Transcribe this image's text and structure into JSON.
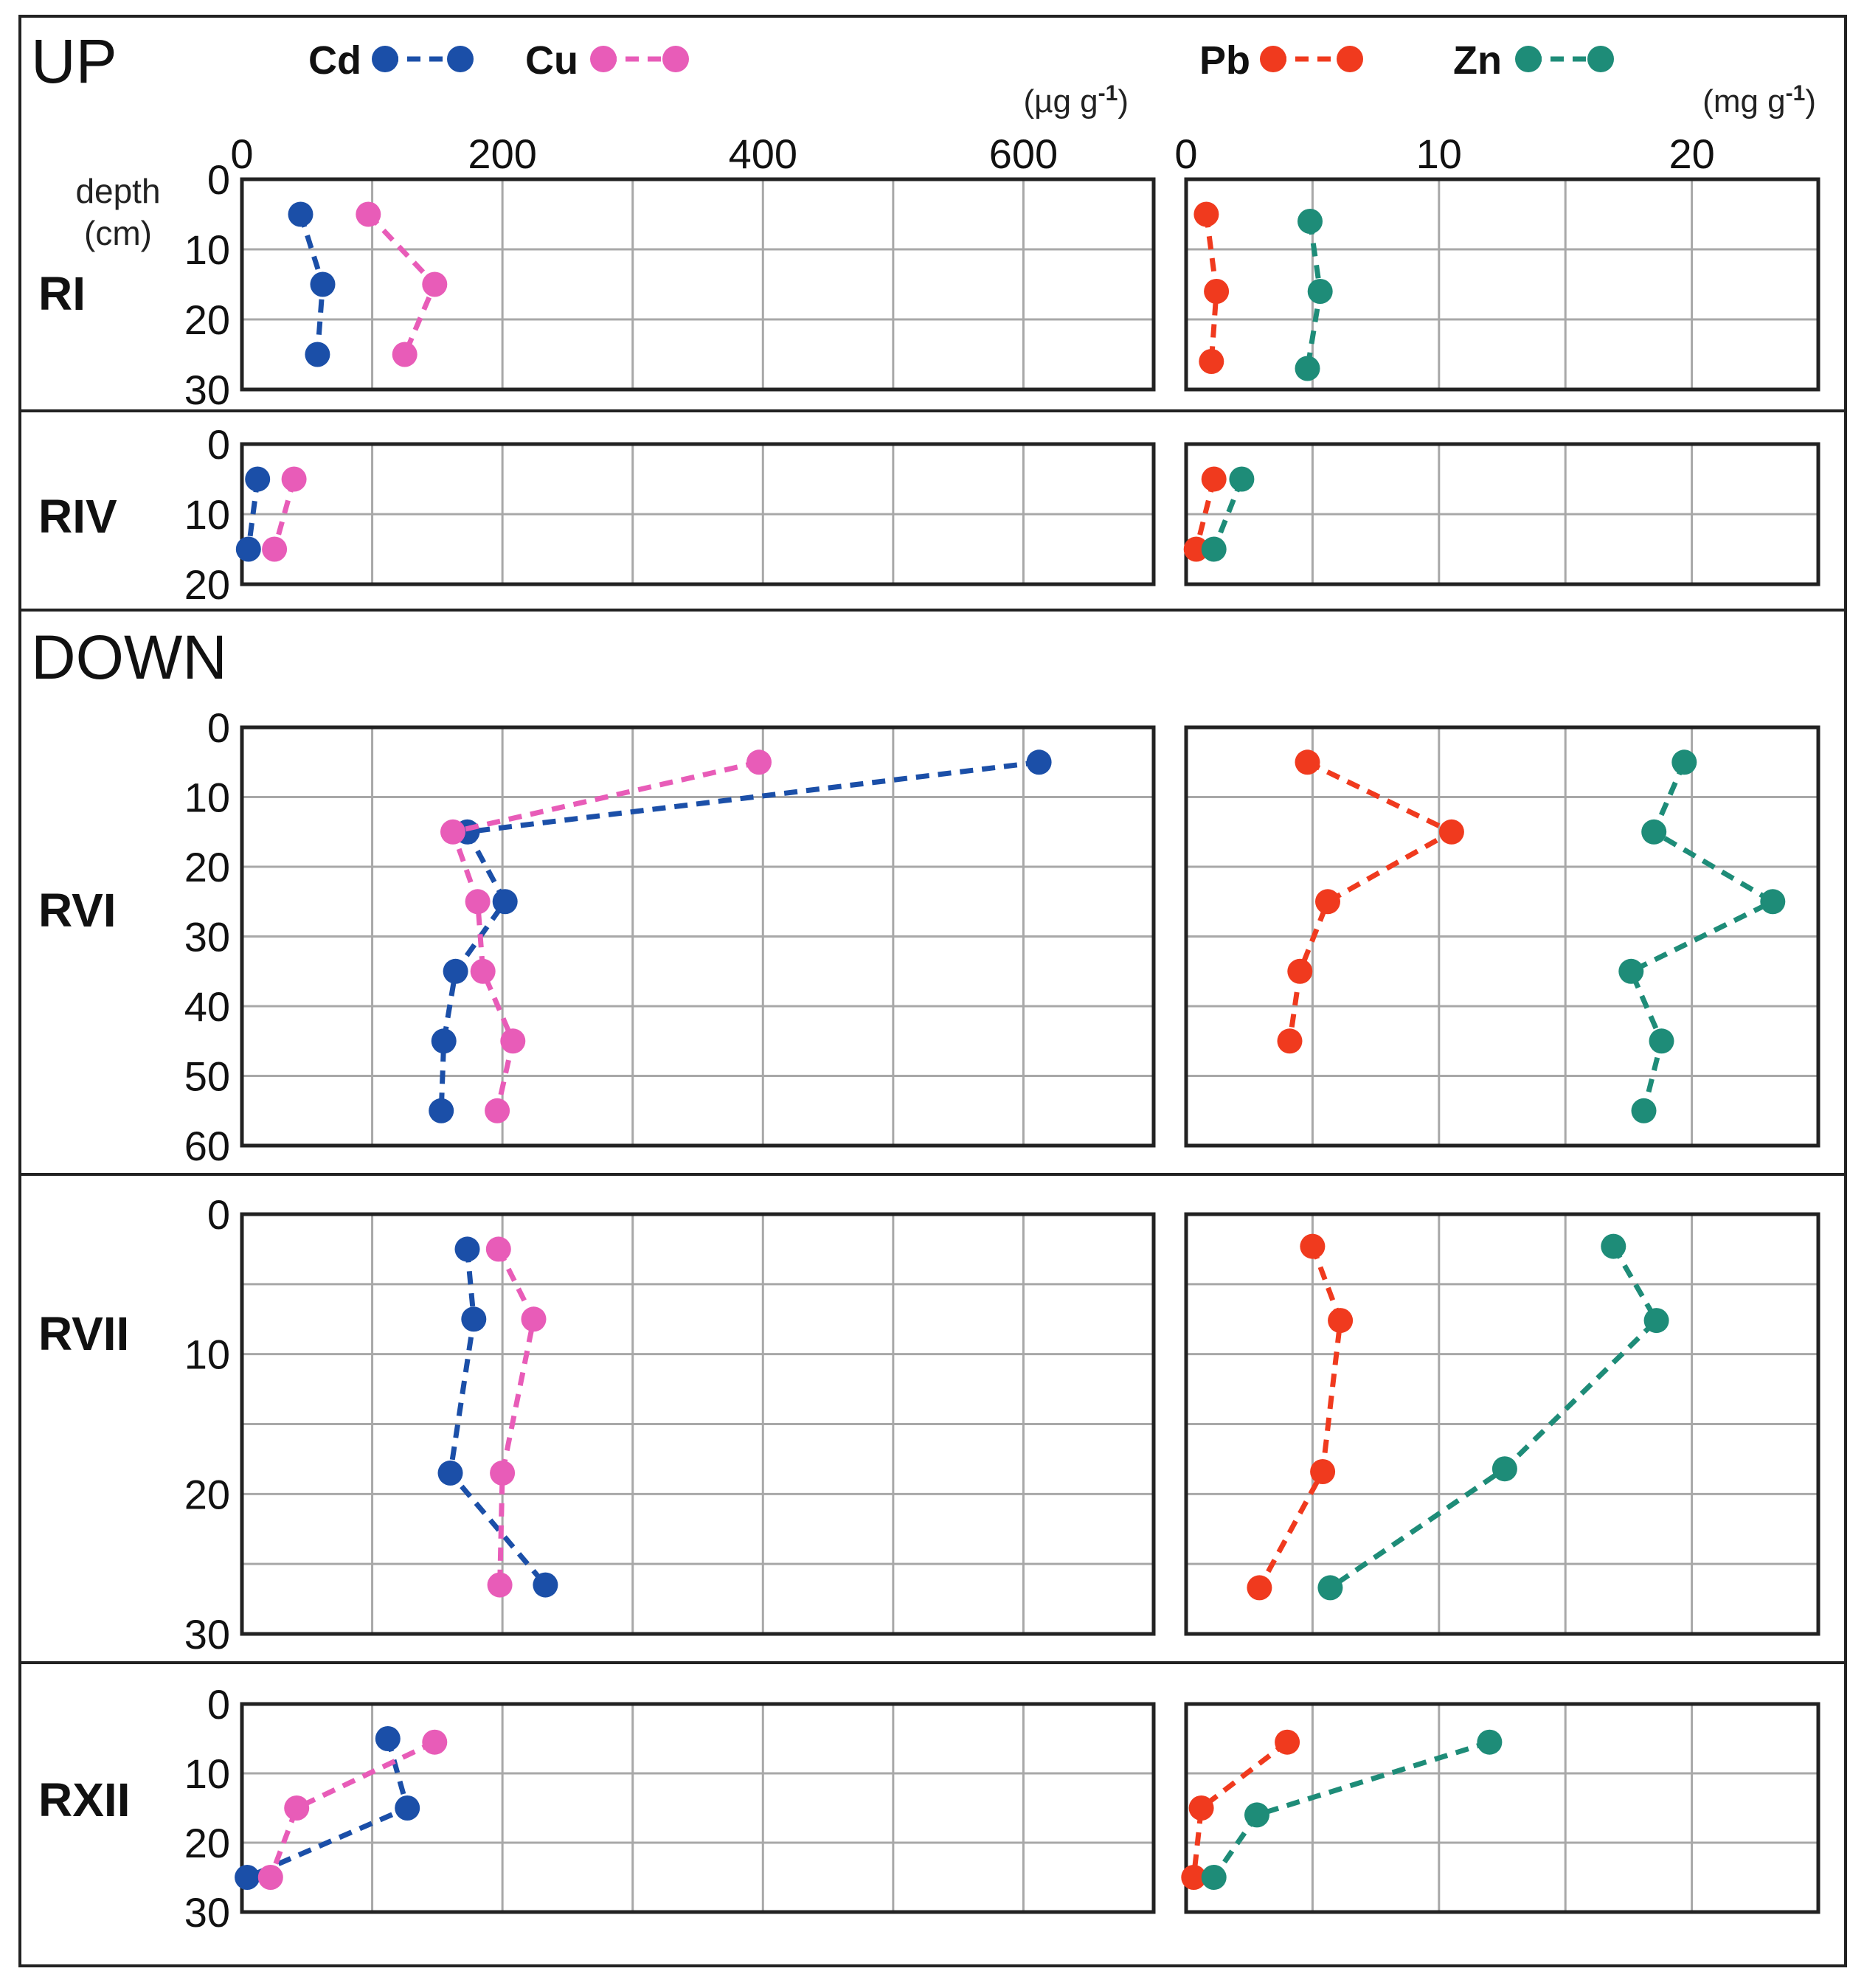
{
  "chart_data": {
    "type": "line",
    "orientation": "depth profile (depth on inverted y-axis, concentration on x-axis)",
    "legend": [
      {
        "name": "Cd",
        "color": "#1b4fa8",
        "axis": "left"
      },
      {
        "name": "Cu",
        "color": "#e85cb8",
        "axis": "left"
      },
      {
        "name": "Pb",
        "color": "#f03a1e",
        "axis": "right"
      },
      {
        "name": "Zn",
        "color": "#1e8c78",
        "axis": "right"
      }
    ],
    "axes": {
      "left": {
        "unit_label": "(µg g",
        "unit_sup": "-1",
        "unit_close": ")",
        "range": [
          0,
          700
        ],
        "grid_step": 100,
        "tick_values": [
          0,
          200,
          400,
          600
        ],
        "ticks": [
          "0",
          "200",
          "400",
          "600"
        ]
      },
      "right": {
        "unit_label": "(mg g",
        "unit_sup": "-1",
        "unit_close": ")",
        "range": [
          0,
          25
        ],
        "grid_step": 5,
        "tick_values": [
          0,
          10,
          20
        ],
        "ticks": [
          "0",
          "10",
          "20"
        ]
      }
    },
    "depth_label": [
      "depth",
      "(cm)"
    ],
    "groups": [
      {
        "label": "UP",
        "sites": [
          "RI",
          "RIV"
        ]
      },
      {
        "label": "DOWN",
        "sites": [
          "RVI",
          "RVII",
          "RXII"
        ]
      }
    ],
    "panels": [
      {
        "site": "RI",
        "depth_max": 30,
        "depth_grid": 10,
        "depth_ticks": [
          0,
          10,
          20,
          30
        ],
        "depth_tick_labels": [
          "0",
          "10",
          "20",
          "30"
        ],
        "series": [
          {
            "name": "Cd",
            "depth": [
              5,
              15,
              25
            ],
            "values": [
              45,
              62,
              58
            ]
          },
          {
            "name": "Cu",
            "depth": [
              5,
              15,
              25
            ],
            "values": [
              97,
              148,
              125
            ]
          },
          {
            "name": "Pb",
            "depth": [
              5,
              16,
              26
            ],
            "values": [
              0.8,
              1.2,
              1.0
            ]
          },
          {
            "name": "Zn",
            "depth": [
              6,
              16,
              27
            ],
            "values": [
              4.9,
              5.3,
              4.8
            ]
          }
        ]
      },
      {
        "site": "RIV",
        "depth_max": 20,
        "depth_grid": 10,
        "depth_ticks": [
          0,
          10,
          20
        ],
        "depth_tick_labels": [
          "0",
          "10",
          "20"
        ],
        "series": [
          {
            "name": "Cd",
            "depth": [
              5,
              15
            ],
            "values": [
              12,
              5
            ]
          },
          {
            "name": "Cu",
            "depth": [
              5,
              15
            ],
            "values": [
              40,
              25
            ]
          },
          {
            "name": "Pb",
            "depth": [
              5,
              15
            ],
            "values": [
              1.1,
              0.4
            ]
          },
          {
            "name": "Zn",
            "depth": [
              5,
              15
            ],
            "values": [
              2.2,
              1.1
            ]
          }
        ]
      },
      {
        "site": "RVI",
        "depth_max": 60,
        "depth_grid": 10,
        "depth_ticks": [
          0,
          10,
          20,
          30,
          40,
          50,
          60
        ],
        "depth_tick_labels": [
          "0",
          "10",
          "20",
          "30",
          "40",
          "50",
          "60"
        ],
        "series": [
          {
            "name": "Cd",
            "depth": [
              5,
              15,
              25,
              35,
              45,
              55
            ],
            "values": [
              612,
              173,
              202,
              164,
              155,
              153
            ]
          },
          {
            "name": "Cu",
            "depth": [
              5,
              15,
              25,
              35,
              45,
              55
            ],
            "values": [
              397,
              162,
              181,
              185,
              208,
              196
            ]
          },
          {
            "name": "Pb",
            "depth": [
              5,
              15,
              25,
              35,
              45,
              55
            ],
            "values": [
              4.8,
              10.5,
              5.6,
              4.5,
              4.1,
              null
            ]
          },
          {
            "name": "Zn",
            "depth": [
              5,
              15,
              25,
              35,
              45,
              55
            ],
            "values": [
              19.7,
              18.5,
              23.2,
              17.6,
              18.8,
              18.1
            ]
          }
        ]
      },
      {
        "site": "RVII",
        "depth_max": 30,
        "depth_grid": 5,
        "depth_ticks": [
          0,
          10,
          20,
          30
        ],
        "depth_tick_labels": [
          "0",
          "10",
          "20",
          "30"
        ],
        "series": [
          {
            "name": "Cd",
            "depth": [
              2.5,
              7.5,
              18.5,
              26.5
            ],
            "values": [
              173,
              178,
              160,
              233
            ]
          },
          {
            "name": "Cu",
            "depth": [
              2.5,
              7.5,
              18.5,
              26.5
            ],
            "values": [
              197,
              224,
              200,
              198
            ]
          },
          {
            "name": "Pb",
            "depth": [
              2.3,
              7.6,
              18.4,
              26.7
            ],
            "values": [
              5.0,
              6.1,
              5.4,
              2.9
            ]
          },
          {
            "name": "Zn",
            "depth": [
              2.3,
              7.6,
              18.2,
              26.7
            ],
            "values": [
              16.9,
              18.6,
              12.6,
              5.7
            ]
          }
        ]
      },
      {
        "site": "RXII",
        "depth_max": 30,
        "depth_grid": 10,
        "depth_ticks": [
          0,
          10,
          20,
          30
        ],
        "depth_tick_labels": [
          "0",
          "10",
          "20",
          "30"
        ],
        "series": [
          {
            "name": "Cd",
            "depth": [
              5,
              15,
              25
            ],
            "values": [
              112,
              127,
              4
            ]
          },
          {
            "name": "Cu",
            "depth": [
              5.5,
              15,
              25
            ],
            "values": [
              148,
              42,
              22
            ]
          },
          {
            "name": "Pb",
            "depth": [
              5.5,
              15,
              25
            ],
            "values": [
              4.0,
              0.6,
              0.3
            ]
          },
          {
            "name": "Zn",
            "depth": [
              5.5,
              16,
              25
            ],
            "values": [
              12.0,
              2.8,
              1.1
            ]
          }
        ]
      }
    ]
  }
}
